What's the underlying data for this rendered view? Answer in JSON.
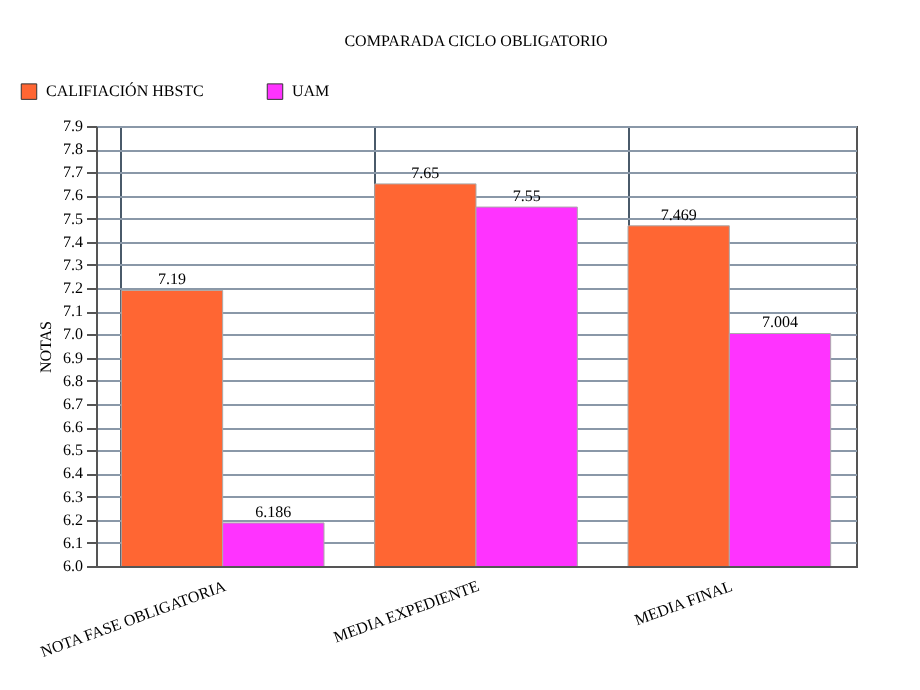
{
  "chart_data": {
    "type": "bar",
    "title": "COMPARADA CICLO OBLIGATORIO",
    "ylabel": "NOTAS",
    "categories": [
      "NOTA FASE OBLIGATORIA",
      "MEDIA EXPEDIENTE",
      "MEDIA FINAL"
    ],
    "series": [
      {
        "name": "CALIFIACIÓN HBSTC",
        "color": "#ff6633",
        "values": [
          7.19,
          7.65,
          7.469
        ]
      },
      {
        "name": "UAM",
        "color": "#ff33ff",
        "values": [
          6.186,
          7.55,
          7.004
        ]
      }
    ],
    "ylim": [
      6.0,
      7.9
    ],
    "yticks": [
      {
        "value": 6.0,
        "label": "6.0"
      },
      6.1,
      6.2,
      6.3,
      6.4,
      6.5,
      6.6,
      6.7,
      6.8,
      6.9,
      {
        "value": 7.0,
        "label": "7.0"
      },
      7.1,
      7.2,
      7.3,
      7.4,
      7.5,
      7.6,
      7.7,
      7.8,
      7.9
    ],
    "data_labels": true,
    "grid": true,
    "legend": "top left"
  }
}
